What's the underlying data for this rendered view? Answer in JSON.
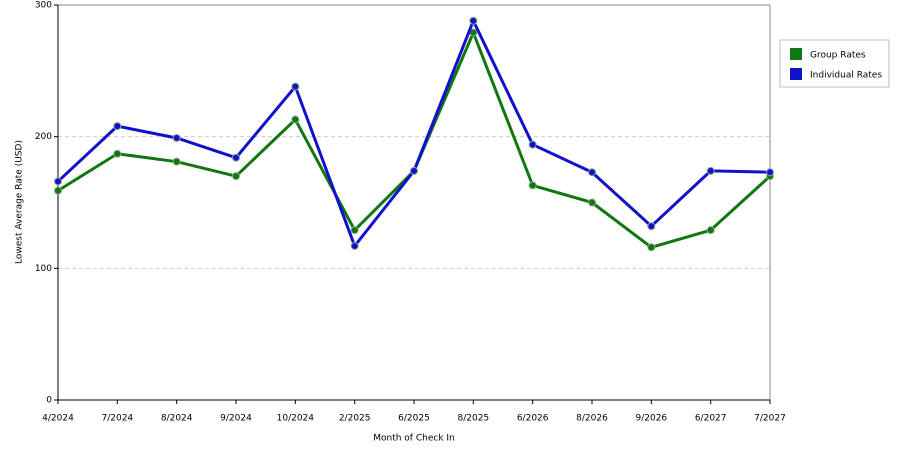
{
  "chart_data": {
    "type": "line",
    "x_label": "Month of Check In",
    "y_label": "Lowest Average Rate (USD)",
    "categories": [
      "4/2024",
      "7/2024",
      "8/2024",
      "9/2024",
      "10/2024",
      "2/2025",
      "6/2025",
      "8/2025",
      "6/2026",
      "8/2026",
      "9/2026",
      "6/2027",
      "7/2027"
    ],
    "series": [
      {
        "name": "Group Rates",
        "color": "#117711",
        "values": [
          159,
          187,
          181,
          170,
          213,
          129,
          174,
          279,
          163,
          150,
          116,
          129,
          170
        ]
      },
      {
        "name": "Individual Rates",
        "color": "#1111cc",
        "values": [
          166,
          208,
          199,
          184,
          238,
          117,
          174,
          288,
          194,
          173,
          132,
          174,
          173
        ]
      }
    ],
    "ylim": [
      0,
      300
    ],
    "yticks": [
      0,
      100,
      200,
      300
    ],
    "grid": true,
    "legend": "top-right"
  }
}
